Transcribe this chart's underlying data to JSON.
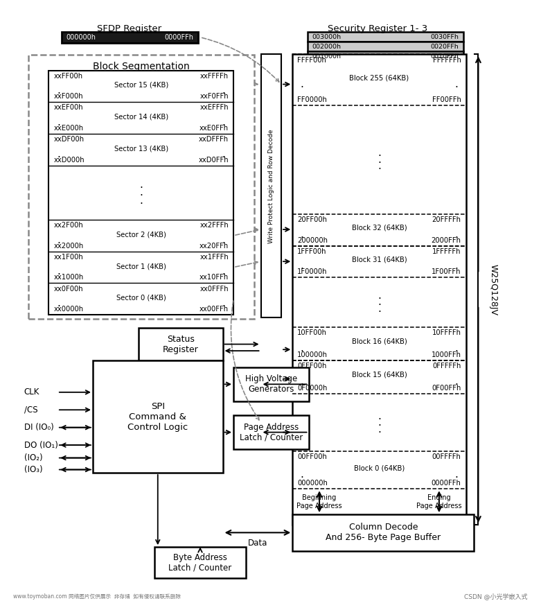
{
  "bg_color": "#ffffff",
  "sfdp_title": "SFDP Register",
  "sfdp_reg": [
    "000000h",
    "0000FFh"
  ],
  "security_title": "Security Register 1- 3",
  "security_regs": [
    [
      "003000h",
      "0030FFh"
    ],
    [
      "002000h",
      "0020FFh"
    ],
    [
      "001000h",
      "0010FFh"
    ]
  ],
  "block_seg_title": "Block Segmentation",
  "sector_data": [
    [
      "xxFF00h",
      "xxFFFFh",
      "Sector 15 (4KB)",
      "xxF000h",
      "xxF0FFh"
    ],
    [
      "xxEF00h",
      "xxEFFFh",
      "Sector 14 (4KB)",
      "xxE000h",
      "xxE0FFh"
    ],
    [
      "xxDF00h",
      "xxDFFFh",
      "Sector 13 (4KB)",
      "xxD000h",
      "xxD0FFh"
    ],
    null,
    [
      "xx2F00h",
      "xx2FFFh",
      "Sector 2 (4KB)",
      "xx2000h",
      "xx20FFh"
    ],
    [
      "xx1F00h",
      "xx1FFFh",
      "Sector 1 (4KB)",
      "xx1000h",
      "xx10FFh"
    ],
    [
      "xx0F00h",
      "xx0FFFh",
      "Sector 0 (4KB)",
      "xx0000h",
      "xx00FFh"
    ]
  ],
  "block_data": [
    [
      "FFFF00h",
      "FFFFFFh",
      "Block 255 (64KB)",
      "FF0000h",
      "FF00FFh"
    ],
    [
      "20FF00h",
      "20FFFFh",
      "Block 32 (64KB)",
      "200000h",
      "2000FFh"
    ],
    [
      "1FFF00h",
      "1FFFFFh",
      "Block 31 (64KB)",
      "1F0000h",
      "1F00FFh"
    ],
    [
      "10FF00h",
      "10FFFFh",
      "Block 16 (64KB)",
      "100000h",
      "1000FFh"
    ],
    [
      "0FFF00h",
      "0FFFFFh",
      "Block 15 (64KB)",
      "0F0000h",
      "0F00FFh"
    ],
    [
      "00FF00h",
      "00FFFFh",
      "Block 0 (64KB)",
      "000000h",
      "0000FFh"
    ]
  ],
  "vertical_label": "W25Q128JV",
  "write_protect_label": "Write Protect Logic and Row Decode",
  "status_reg_label": "Status\nRegister",
  "high_volt_label": "High Voltage\nGenerators",
  "page_addr_label": "Page Address\nLatch / Counter",
  "spi_label": "SPI\nCommand &\nControl Logic",
  "col_decode_label": "Column Decode\nAnd 256- Byte Page Buffer",
  "byte_addr_label": "Byte Address\nLatch / Counter",
  "data_label": "Data",
  "io_labels": [
    "CLK",
    "/CS",
    "DI (IO₀)",
    "DO (IO₁)",
    "(IO₂)",
    "(IO₃)"
  ],
  "beginning_label": "Beginning\nPage Address",
  "ending_label": "Ending\nPage Address",
  "watermark_left": "www.toymoban.com 网络图片仅供展示  非存储  如有侵权请联系删除",
  "watermark_right": "CSDN @小光学嵌入式"
}
